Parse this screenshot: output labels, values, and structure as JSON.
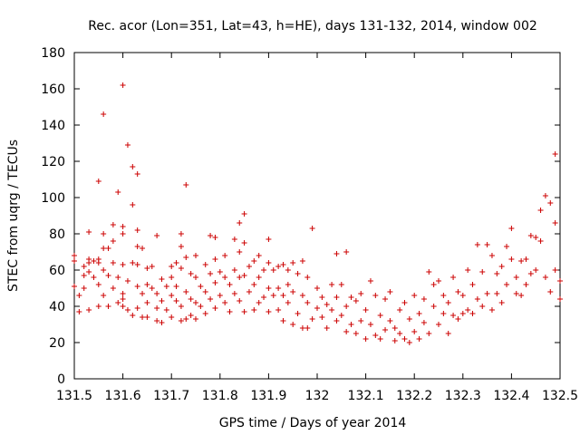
{
  "chart_data": {
    "type": "scatter",
    "title": "Rec. acor (Lon=351, Lat=43, h=HE), days 131-132, 2014, window 002",
    "xlabel": "GPS time / Days of year 2014",
    "ylabel": "STEC from uqrg / TECUs",
    "xlim": [
      131.5,
      132.5
    ],
    "ylim": [
      0,
      180
    ],
    "x_ticks": [
      "131.5",
      "131.6",
      "131.7",
      "131.8",
      "131.9",
      "132",
      "132.1",
      "132.2",
      "132.3",
      "132.4",
      "132.5"
    ],
    "y_ticks": [
      "0",
      "20",
      "40",
      "60",
      "80",
      "100",
      "120",
      "140",
      "160",
      "180"
    ],
    "grid": false,
    "marker": "+",
    "color": "#cc0000",
    "series": [
      {
        "points": [
          [
            131.5,
            68
          ],
          [
            131.5,
            65
          ],
          [
            131.5,
            51
          ],
          [
            131.51,
            46
          ],
          [
            131.51,
            37
          ],
          [
            131.52,
            62
          ],
          [
            131.52,
            57
          ],
          [
            131.52,
            50
          ],
          [
            131.53,
            81
          ],
          [
            131.53,
            66
          ],
          [
            131.53,
            64
          ],
          [
            131.53,
            59
          ],
          [
            131.53,
            38
          ],
          [
            131.54,
            65
          ],
          [
            131.54,
            56
          ],
          [
            131.55,
            109
          ],
          [
            131.55,
            66
          ],
          [
            131.55,
            64
          ],
          [
            131.55,
            52
          ],
          [
            131.55,
            40
          ],
          [
            131.56,
            146
          ],
          [
            131.56,
            80
          ],
          [
            131.56,
            72
          ],
          [
            131.56,
            60
          ],
          [
            131.56,
            46
          ],
          [
            131.57,
            72
          ],
          [
            131.57,
            57
          ],
          [
            131.57,
            40
          ],
          [
            131.58,
            85
          ],
          [
            131.58,
            76
          ],
          [
            131.58,
            64
          ],
          [
            131.58,
            50
          ],
          [
            131.59,
            103
          ],
          [
            131.59,
            56
          ],
          [
            131.59,
            42
          ],
          [
            131.6,
            162
          ],
          [
            131.6,
            84
          ],
          [
            131.6,
            80
          ],
          [
            131.6,
            63
          ],
          [
            131.6,
            47
          ],
          [
            131.6,
            44
          ],
          [
            131.6,
            40
          ],
          [
            131.61,
            129
          ],
          [
            131.61,
            54
          ],
          [
            131.61,
            38
          ],
          [
            131.62,
            117
          ],
          [
            131.62,
            96
          ],
          [
            131.62,
            64
          ],
          [
            131.62,
            35
          ],
          [
            131.63,
            113
          ],
          [
            131.63,
            82
          ],
          [
            131.63,
            73
          ],
          [
            131.63,
            63
          ],
          [
            131.63,
            51
          ],
          [
            131.63,
            39
          ],
          [
            131.64,
            72
          ],
          [
            131.64,
            47
          ],
          [
            131.64,
            34
          ],
          [
            131.65,
            61
          ],
          [
            131.65,
            52
          ],
          [
            131.65,
            42
          ],
          [
            131.65,
            34
          ],
          [
            131.66,
            62
          ],
          [
            131.66,
            50
          ],
          [
            131.67,
            79
          ],
          [
            131.67,
            47
          ],
          [
            131.67,
            39
          ],
          [
            131.67,
            32
          ],
          [
            131.68,
            55
          ],
          [
            131.68,
            43
          ],
          [
            131.68,
            31
          ],
          [
            131.69,
            51
          ],
          [
            131.69,
            38
          ],
          [
            131.7,
            62
          ],
          [
            131.7,
            56
          ],
          [
            131.7,
            46
          ],
          [
            131.7,
            34
          ],
          [
            131.71,
            64
          ],
          [
            131.71,
            51
          ],
          [
            131.71,
            43
          ],
          [
            131.72,
            80
          ],
          [
            131.72,
            73
          ],
          [
            131.72,
            61
          ],
          [
            131.72,
            40
          ],
          [
            131.72,
            32
          ],
          [
            131.73,
            107
          ],
          [
            131.73,
            67
          ],
          [
            131.73,
            48
          ],
          [
            131.73,
            33
          ],
          [
            131.74,
            58
          ],
          [
            131.74,
            44
          ],
          [
            131.74,
            35
          ],
          [
            131.75,
            68
          ],
          [
            131.75,
            56
          ],
          [
            131.75,
            42
          ],
          [
            131.75,
            33
          ],
          [
            131.76,
            51
          ],
          [
            131.76,
            40
          ],
          [
            131.77,
            63
          ],
          [
            131.77,
            48
          ],
          [
            131.77,
            36
          ],
          [
            131.78,
            79
          ],
          [
            131.78,
            58
          ],
          [
            131.78,
            44
          ],
          [
            131.79,
            78
          ],
          [
            131.79,
            66
          ],
          [
            131.79,
            53
          ],
          [
            131.79,
            39
          ],
          [
            131.8,
            59
          ],
          [
            131.8,
            46
          ],
          [
            131.81,
            68
          ],
          [
            131.81,
            56
          ],
          [
            131.81,
            42
          ],
          [
            131.82,
            52
          ],
          [
            131.82,
            37
          ],
          [
            131.83,
            77
          ],
          [
            131.83,
            60
          ],
          [
            131.83,
            47
          ],
          [
            131.84,
            86
          ],
          [
            131.84,
            70
          ],
          [
            131.84,
            56
          ],
          [
            131.84,
            43
          ],
          [
            131.85,
            91
          ],
          [
            131.85,
            75
          ],
          [
            131.85,
            57
          ],
          [
            131.85,
            37
          ],
          [
            131.86,
            62
          ],
          [
            131.86,
            48
          ],
          [
            131.87,
            65
          ],
          [
            131.87,
            52
          ],
          [
            131.87,
            38
          ],
          [
            131.88,
            68
          ],
          [
            131.88,
            56
          ],
          [
            131.88,
            42
          ],
          [
            131.89,
            60
          ],
          [
            131.89,
            45
          ],
          [
            131.9,
            77
          ],
          [
            131.9,
            64
          ],
          [
            131.9,
            50
          ],
          [
            131.9,
            37
          ],
          [
            131.91,
            60
          ],
          [
            131.91,
            46
          ],
          [
            131.92,
            62
          ],
          [
            131.92,
            50
          ],
          [
            131.92,
            38
          ],
          [
            131.93,
            63
          ],
          [
            131.93,
            46
          ],
          [
            131.93,
            32
          ],
          [
            131.94,
            60
          ],
          [
            131.94,
            52
          ],
          [
            131.94,
            42
          ],
          [
            131.95,
            64
          ],
          [
            131.95,
            48
          ],
          [
            131.95,
            30
          ],
          [
            131.96,
            58
          ],
          [
            131.96,
            36
          ],
          [
            131.97,
            65
          ],
          [
            131.97,
            46
          ],
          [
            131.97,
            28
          ],
          [
            131.98,
            56
          ],
          [
            131.98,
            42
          ],
          [
            131.98,
            28
          ],
          [
            131.99,
            83
          ],
          [
            131.99,
            33
          ],
          [
            132.0,
            50
          ],
          [
            132.0,
            39
          ],
          [
            132.01,
            45
          ],
          [
            132.01,
            34
          ],
          [
            132.02,
            41
          ],
          [
            132.02,
            28
          ],
          [
            132.03,
            52
          ],
          [
            132.03,
            38
          ],
          [
            132.04,
            69
          ],
          [
            132.04,
            45
          ],
          [
            132.04,
            32
          ],
          [
            132.05,
            52
          ],
          [
            132.05,
            35
          ],
          [
            132.06,
            70
          ],
          [
            132.06,
            40
          ],
          [
            132.06,
            26
          ],
          [
            132.07,
            45
          ],
          [
            132.07,
            30
          ],
          [
            132.08,
            43
          ],
          [
            132.08,
            25
          ],
          [
            132.09,
            47
          ],
          [
            132.09,
            32
          ],
          [
            132.1,
            38
          ],
          [
            132.1,
            22
          ],
          [
            132.11,
            54
          ],
          [
            132.11,
            30
          ],
          [
            132.12,
            46
          ],
          [
            132.12,
            24
          ],
          [
            132.13,
            35
          ],
          [
            132.13,
            22
          ],
          [
            132.14,
            44
          ],
          [
            132.14,
            27
          ],
          [
            132.15,
            48
          ],
          [
            132.15,
            32
          ],
          [
            132.16,
            28
          ],
          [
            132.16,
            21
          ],
          [
            132.17,
            38
          ],
          [
            132.17,
            25
          ],
          [
            132.18,
            22
          ],
          [
            132.18,
            42
          ],
          [
            132.19,
            33
          ],
          [
            132.19,
            20
          ],
          [
            132.2,
            46
          ],
          [
            132.2,
            26
          ],
          [
            132.21,
            36
          ],
          [
            132.21,
            22
          ],
          [
            132.22,
            44
          ],
          [
            132.22,
            31
          ],
          [
            132.23,
            59
          ],
          [
            132.23,
            25
          ],
          [
            132.24,
            40
          ],
          [
            132.24,
            52
          ],
          [
            132.25,
            54
          ],
          [
            132.25,
            30
          ],
          [
            132.26,
            46
          ],
          [
            132.26,
            36
          ],
          [
            132.27,
            42
          ],
          [
            132.27,
            25
          ],
          [
            132.28,
            56
          ],
          [
            132.28,
            35
          ],
          [
            132.29,
            48
          ],
          [
            132.29,
            33
          ],
          [
            132.3,
            46
          ],
          [
            132.3,
            36
          ],
          [
            132.31,
            60
          ],
          [
            132.31,
            38
          ],
          [
            132.32,
            52
          ],
          [
            132.32,
            36
          ],
          [
            132.33,
            74
          ],
          [
            132.33,
            44
          ],
          [
            132.34,
            59
          ],
          [
            132.34,
            40
          ],
          [
            132.35,
            74
          ],
          [
            132.35,
            47
          ],
          [
            132.36,
            68
          ],
          [
            132.36,
            38
          ],
          [
            132.37,
            58
          ],
          [
            132.37,
            47
          ],
          [
            132.38,
            62
          ],
          [
            132.38,
            42
          ],
          [
            132.39,
            73
          ],
          [
            132.39,
            52
          ],
          [
            132.4,
            83
          ],
          [
            132.4,
            66
          ],
          [
            132.41,
            56
          ],
          [
            132.41,
            47
          ],
          [
            132.42,
            65
          ],
          [
            132.42,
            46
          ],
          [
            132.43,
            66
          ],
          [
            132.43,
            52
          ],
          [
            132.44,
            79
          ],
          [
            132.44,
            58
          ],
          [
            132.45,
            78
          ],
          [
            132.45,
            60
          ],
          [
            132.46,
            93
          ],
          [
            132.46,
            76
          ],
          [
            132.47,
            101
          ],
          [
            132.47,
            56
          ],
          [
            132.48,
            97
          ],
          [
            132.48,
            48
          ],
          [
            132.49,
            86
          ],
          [
            132.49,
            60
          ],
          [
            132.49,
            124
          ],
          [
            132.5,
            54
          ],
          [
            132.5,
            44
          ]
        ]
      }
    ]
  }
}
